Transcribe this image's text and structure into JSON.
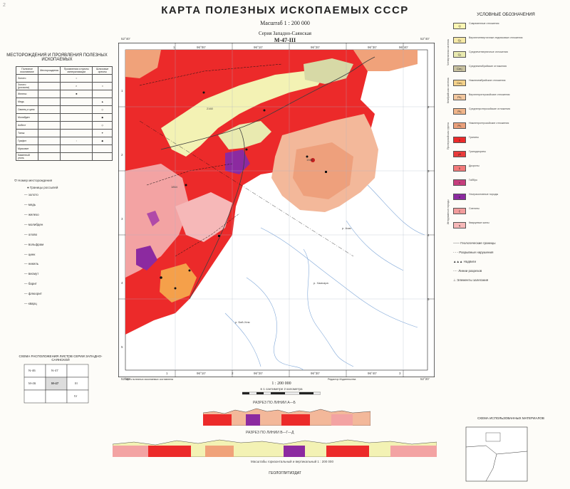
{
  "header": {
    "title": "КАРТА ПОЛЕЗНЫХ ИСКОПАЕМЫХ СССР",
    "scale": "Масштаб 1 : 200 000",
    "series": "Серия Западно-Саянская",
    "sheet": "М-47-III",
    "corner_top_left": "2"
  },
  "map": {
    "top_ticks": [
      "1",
      "96°00'",
      "96°10'",
      "96°20'",
      "96°30'",
      "96°40'"
    ],
    "bottom_ticks": [
      "1",
      "96°10'",
      "2",
      "96°20'",
      "96°30'",
      "96°40'",
      "3"
    ],
    "left_ticks": [
      "1",
      "2",
      "3",
      "4",
      "5"
    ],
    "right_ticks": [
      "2",
      "3",
      "4",
      "5"
    ],
    "corner_labels": [
      "52°40'",
      "52°40'",
      "52°20'",
      "52°20'"
    ],
    "river_labels": [
      "р. Хамсара",
      "р. Азас",
      "р. Бий-Хем"
    ],
    "peak_labels": [
      "1988",
      "2160",
      "1864"
    ]
  },
  "left_legend": {
    "title": "МЕСТОРОЖДЕНИЯ И ПРОЯВЛЕНИЯ ПОЛЕЗНЫХ ИСКОПАЕМЫХ",
    "columns": [
      "Полезное ископаемое",
      "Месторождения",
      "Проявления и пункты минерализации",
      "Шлиховые ореолы"
    ],
    "rows": [
      "Золото",
      "Золото (россыпи)",
      "Железо",
      "Медь",
      "Свинец и цинк",
      "Молибден",
      "Асбест",
      "Тальк",
      "Графит",
      "Мусковит",
      "Каменный уголь"
    ],
    "other_items": [
      "Номер месторождения",
      "Границы россыпей",
      "— золото",
      "— медь",
      "— железо",
      "— молибден",
      "— олово",
      "— вольфрам",
      "— цинк",
      "— никель",
      "— висмут",
      "— барит",
      "— флюорит",
      "— кварц"
    ],
    "scheme_title": "СХЕМА РАСПОЛОЖЕНИЯ ЛИСТОВ СЕРИИ ЗАПАДНО-САЯНСКОЙ",
    "scheme_labels": [
      "М-46",
      "М-47",
      "N-46",
      "N-47",
      "II",
      "III",
      "IV"
    ]
  },
  "right_legend": {
    "title": "УСЛОВНЫЕ ОБОЗНАЧЕНИЯ",
    "groups": [
      "Четвертичная система",
      "Кембрийская система",
      "Протерозойская группа",
      "Интрузивные породы"
    ],
    "items": [
      {
        "code": "Q",
        "label": "Современные отложения",
        "color": "#fdf7b4"
      },
      {
        "code": "Q₃",
        "label": "Верхнечетвертичные ледниковые отложения",
        "color": "#f6e9a6"
      },
      {
        "code": "Q₂",
        "label": "Среднечетвертичные отложения",
        "color": "#e9eab0"
      },
      {
        "code": "Cm₂",
        "label": "Среднекембрийские отложения",
        "color": "#c9c2a0"
      },
      {
        "code": "Cm₁",
        "label": "Нижнекембрийские отложения",
        "color": "#f5d28a"
      },
      {
        "code": "Pt₃",
        "label": "Верхнепротерозойские отложения",
        "color": "#f2c79e"
      },
      {
        "code": "Pt₂",
        "label": "Среднепротерозойские отложения",
        "color": "#f0b58a"
      },
      {
        "code": "Pt₁",
        "label": "Нижнепротерозойские отложения",
        "color": "#eaa07a"
      },
      {
        "code": "γ",
        "label": "Граниты",
        "color": "#ec2a2a"
      },
      {
        "code": "γδ",
        "label": "Гранодиориты",
        "color": "#e93b3b"
      },
      {
        "code": "δ",
        "label": "Диориты",
        "color": "#f27a7a"
      },
      {
        "code": "ν",
        "label": "Габбро",
        "color": "#c63e7d"
      },
      {
        "code": "σ",
        "label": "Ультраосновные породы",
        "color": "#8c2aa0"
      },
      {
        "code": "ξ",
        "label": "Сиениты",
        "color": "#f29c9c"
      },
      {
        "code": "q",
        "label": "Кварцевые жилы",
        "color": "#f6b8b8"
      }
    ],
    "lines": [
      "Геологические границы",
      "Разрывные нарушения",
      "Надвиги",
      "Линии разрезов",
      "Элементы залегания"
    ],
    "inset_title": "СХЕМА ИСПОЛЬЗОВАННЫХ МАТЕРИАЛОВ"
  },
  "bottom": {
    "scale_numeric": "1 : 200 000",
    "scale_note": "в 1 сантиметре 2 километра",
    "section_1": "РАЗРЕЗ ПО ЛИНИИ А—Б",
    "section_2": "РАЗРЕЗ ПО ЛИНИИ В—Г—Д",
    "section_scale": "Масштабы горизонтальный и вертикальный 1 : 200 000",
    "imprint": "ГЕОЛОГЛИТИЗДАТ",
    "credits_left": "Карта полезных ископаемых составлена",
    "credits_right": "Редактор Издательства"
  },
  "colors": {
    "granite": "#ec2a2a",
    "orange_pt": "#f0a27a",
    "quaternary": "#f3f2b4",
    "purple": "#8c2aa0",
    "pink": "#f3a3a3",
    "base": "#ffffff",
    "river": "#7fa7d8"
  }
}
